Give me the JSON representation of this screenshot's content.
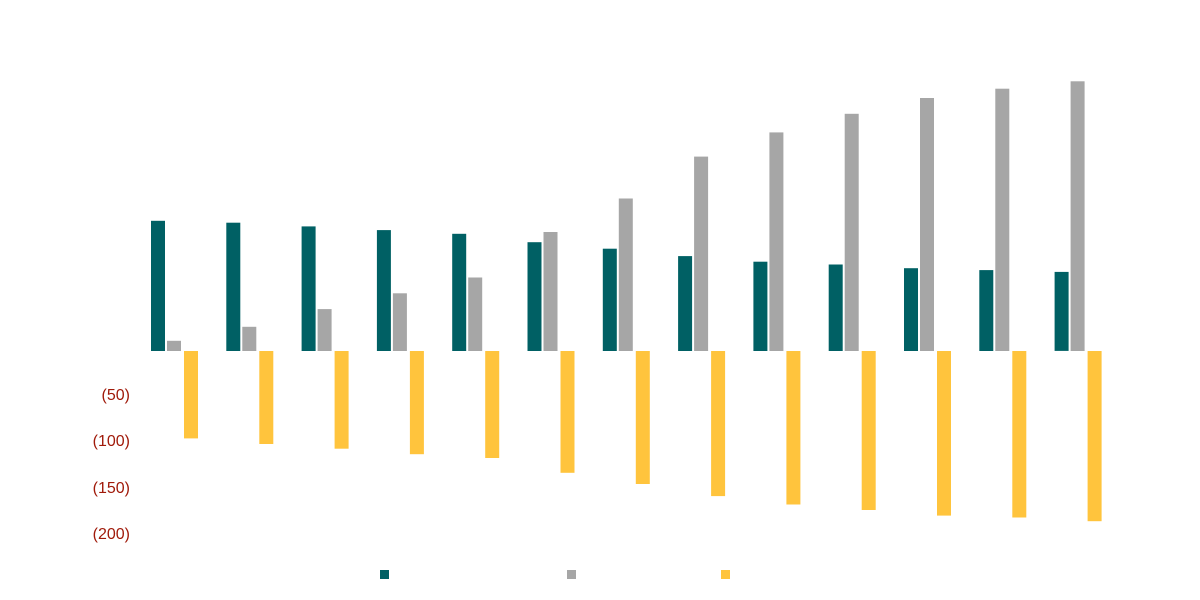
{
  "chart_data": {
    "type": "bar",
    "categories": [
      "",
      "",
      "",
      "",
      "",
      "",
      "",
      "",
      "",
      "",
      "",
      "",
      ""
    ],
    "series": [
      {
        "values": [
          140,
          138,
          134,
          130,
          126,
          117,
          110,
          102,
          96,
          93,
          89,
          87,
          85
        ],
        "color": "#006064"
      },
      {
        "values": [
          11,
          26,
          45,
          62,
          79,
          128,
          164,
          209,
          235,
          255,
          272,
          282,
          290
        ],
        "color": "#a6a6a6"
      },
      {
        "values": [
          -94,
          -100,
          -105,
          -111,
          -115,
          -131,
          -143,
          -156,
          -165,
          -171,
          -177,
          -179,
          -183
        ],
        "color": "#ffc43d"
      }
    ],
    "y_ticks": [
      {
        "value": -50,
        "label": "(50)"
      },
      {
        "value": -100,
        "label": "(100)"
      },
      {
        "value": -150,
        "label": "(150)"
      },
      {
        "value": -200,
        "label": "(200)"
      }
    ],
    "ylim": [
      -200,
      300
    ],
    "grid": false,
    "legend": "bottom"
  }
}
